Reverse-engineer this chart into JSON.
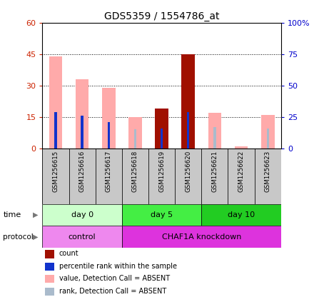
{
  "title": "GDS5359 / 1554786_at",
  "samples": [
    "GSM1256615",
    "GSM1256616",
    "GSM1256617",
    "GSM1256618",
    "GSM1256619",
    "GSM1256620",
    "GSM1256621",
    "GSM1256622",
    "GSM1256623"
  ],
  "pink_values": [
    44,
    33,
    29,
    15,
    0,
    0,
    17,
    1,
    16
  ],
  "red_values": [
    0,
    0,
    0,
    0,
    19,
    45,
    0,
    0,
    0
  ],
  "blue_rank": [
    29,
    26,
    21,
    0,
    16,
    29,
    0,
    0,
    0
  ],
  "light_blue_rank": [
    0,
    0,
    0,
    15,
    0,
    0,
    17,
    0,
    16
  ],
  "ylim_left": [
    0,
    60
  ],
  "yticks_left": [
    0,
    15,
    30,
    45,
    60
  ],
  "ylim_right": [
    0,
    100
  ],
  "yticks_right": [
    0,
    25,
    50,
    75,
    100
  ],
  "ytick_labels_right": [
    "0",
    "25",
    "50",
    "75",
    "100%"
  ],
  "color_dark_red": "#a01000",
  "color_pink": "#ffaaaa",
  "color_blue": "#1133cc",
  "color_light_blue": "#aabbcc",
  "time_groups": [
    {
      "label": "day 0",
      "start": 0,
      "end": 3,
      "color": "#ccffcc"
    },
    {
      "label": "day 5",
      "start": 3,
      "end": 6,
      "color": "#44ee44"
    },
    {
      "label": "day 10",
      "start": 6,
      "end": 9,
      "color": "#22cc22"
    }
  ],
  "protocol_groups": [
    {
      "label": "control",
      "start": 0,
      "end": 3,
      "color": "#ee88ee"
    },
    {
      "label": "CHAF1A knockdown",
      "start": 3,
      "end": 9,
      "color": "#dd33dd"
    }
  ],
  "legend_items": [
    {
      "color": "#a01000",
      "label": "count"
    },
    {
      "color": "#1133cc",
      "label": "percentile rank within the sample"
    },
    {
      "color": "#ffaaaa",
      "label": "value, Detection Call = ABSENT"
    },
    {
      "color": "#aabbcc",
      "label": "rank, Detection Call = ABSENT"
    }
  ],
  "bar_width": 0.5,
  "left_tick_color": "#cc2200",
  "right_tick_color": "#0000cc",
  "sample_box_color": "#c8c8c8"
}
